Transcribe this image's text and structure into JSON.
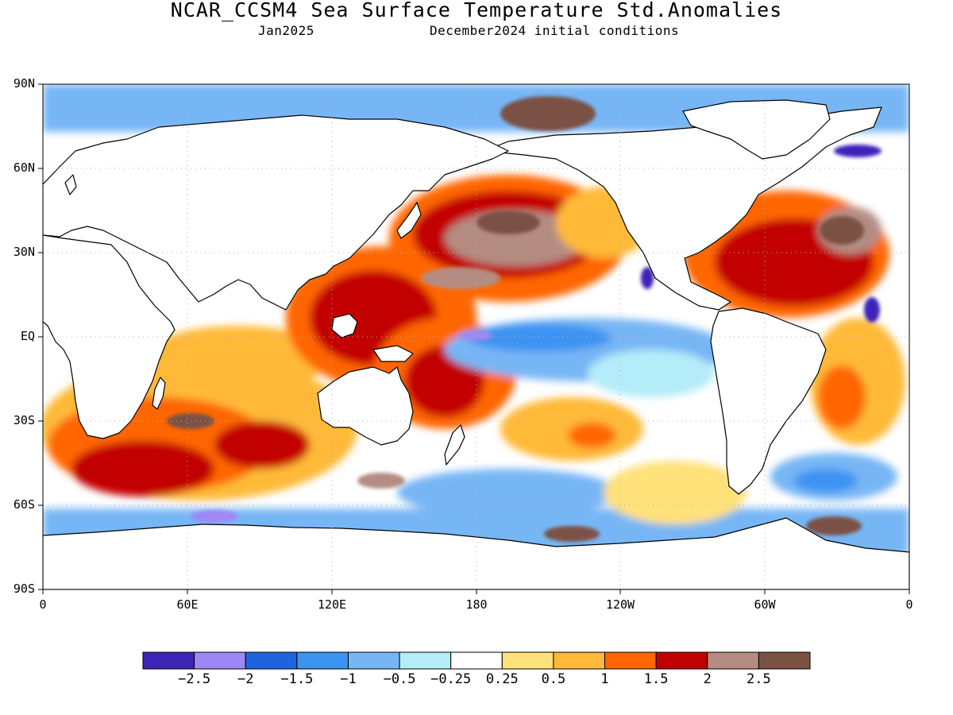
{
  "figure": {
    "title": "NCAR_CCSM4 Sea Surface Temperature Std.Anomalies",
    "valid_month": "Jan2025",
    "initial_conditions": "December2024 initial conditions"
  },
  "axes": {
    "lat_ticks": [
      "90N",
      "60N",
      "30N",
      "EQ",
      "30S",
      "60S",
      "90S"
    ],
    "lon_ticks": [
      "0",
      "60E",
      "120E",
      "180",
      "120W",
      "60W",
      "0"
    ],
    "grid": "dotted"
  },
  "colorbar": {
    "levels": [
      "-2.5",
      "-2",
      "-1.5",
      "-1",
      "-0.5",
      "-0.25",
      "0.25",
      "0.5",
      "1",
      "1.5",
      "2",
      "2.5"
    ],
    "colors": [
      "#3d24b8",
      "#9e88f5",
      "#2063e0",
      "#3c93f2",
      "#77b6f5",
      "#b4ecf8",
      "#ffffff",
      "#ffe17a",
      "#ffb937",
      "#ff6600",
      "#c20000",
      "#b48c82",
      "#7b5144"
    ]
  },
  "map": {
    "projection": "cylindrical equidistant",
    "land_color": "#ffffff",
    "coastline_color": "#000000"
  }
}
